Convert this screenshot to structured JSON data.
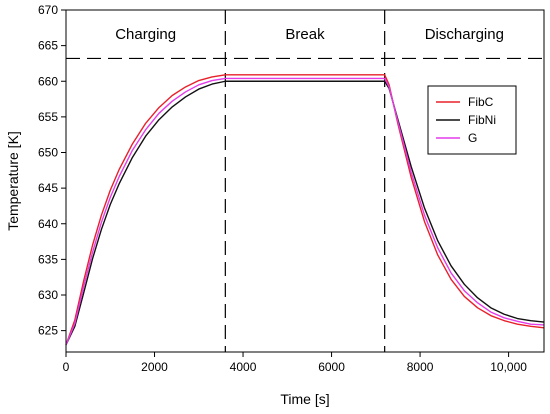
{
  "chart_data": {
    "type": "line",
    "xlabel": "Time [s]",
    "ylabel": "Temperature [K]",
    "xlim": [
      0,
      10800
    ],
    "ylim": [
      622,
      670
    ],
    "xticks": [
      0,
      2000,
      4000,
      6000,
      8000,
      10000
    ],
    "xtick_labels": [
      "0",
      "2000",
      "4000",
      "6000",
      "8000",
      "10,000"
    ],
    "yticks": [
      625,
      630,
      635,
      640,
      645,
      650,
      655,
      660,
      665,
      670
    ],
    "phases": [
      {
        "label": "Charging",
        "x_start": 0,
        "x_end": 3600
      },
      {
        "label": "Break",
        "x_start": 3600,
        "x_end": 7200
      },
      {
        "label": "Discharging",
        "x_start": 7200,
        "x_end": 10800
      }
    ],
    "phase_dividers_x": [
      3600,
      7200
    ],
    "phase_ceiling_y": 663.2,
    "legend_position": "upper-right",
    "series": [
      {
        "name": "FibC",
        "color": "#e8202a",
        "x": [
          0,
          200,
          400,
          600,
          800,
          1000,
          1200,
          1500,
          1800,
          2100,
          2400,
          2700,
          3000,
          3300,
          3600,
          7200,
          7300,
          7500,
          7800,
          8100,
          8400,
          8700,
          9000,
          9300,
          9600,
          9900,
          10200,
          10500,
          10800
        ],
        "values": [
          623,
          626.5,
          632,
          637,
          641.2,
          644.7,
          647.6,
          651.2,
          654.1,
          656.3,
          658,
          659.2,
          660.1,
          660.6,
          660.9,
          660.9,
          659.5,
          654,
          646.5,
          640.3,
          635.6,
          632.2,
          629.8,
          628.2,
          627.1,
          626.4,
          625.9,
          625.6,
          625.4
        ]
      },
      {
        "name": "FibNi",
        "color": "#111111",
        "x": [
          0,
          200,
          400,
          600,
          800,
          1000,
          1200,
          1500,
          1800,
          2100,
          2400,
          2700,
          3000,
          3300,
          3600,
          7200,
          7300,
          7500,
          7800,
          8100,
          8400,
          8700,
          9000,
          9300,
          9600,
          9900,
          10200,
          10500,
          10800
        ],
        "values": [
          623,
          625.6,
          630.3,
          635.1,
          639.2,
          642.7,
          645.6,
          649.3,
          652.3,
          654.6,
          656.4,
          657.8,
          658.9,
          659.6,
          660,
          660,
          659,
          654.6,
          648,
          642.2,
          637.6,
          634.1,
          631.5,
          629.6,
          628.2,
          627.3,
          626.7,
          626.4,
          626.2
        ]
      },
      {
        "name": "G",
        "color": "#e23de8",
        "x": [
          0,
          200,
          400,
          600,
          800,
          1000,
          1200,
          1500,
          1800,
          2100,
          2400,
          2700,
          3000,
          3300,
          3600,
          7200,
          7300,
          7500,
          7800,
          8100,
          8400,
          8700,
          9000,
          9300,
          9600,
          9900,
          10200,
          10500,
          10800
        ],
        "values": [
          623,
          626,
          631.2,
          636,
          640.2,
          643.7,
          646.6,
          650.3,
          653.2,
          655.5,
          657.2,
          658.5,
          659.5,
          660.1,
          660.4,
          660.4,
          659.2,
          654.3,
          647.2,
          641.2,
          636.6,
          633.1,
          630.6,
          628.9,
          627.6,
          626.8,
          626.3,
          625.9,
          625.8
        ]
      }
    ]
  }
}
